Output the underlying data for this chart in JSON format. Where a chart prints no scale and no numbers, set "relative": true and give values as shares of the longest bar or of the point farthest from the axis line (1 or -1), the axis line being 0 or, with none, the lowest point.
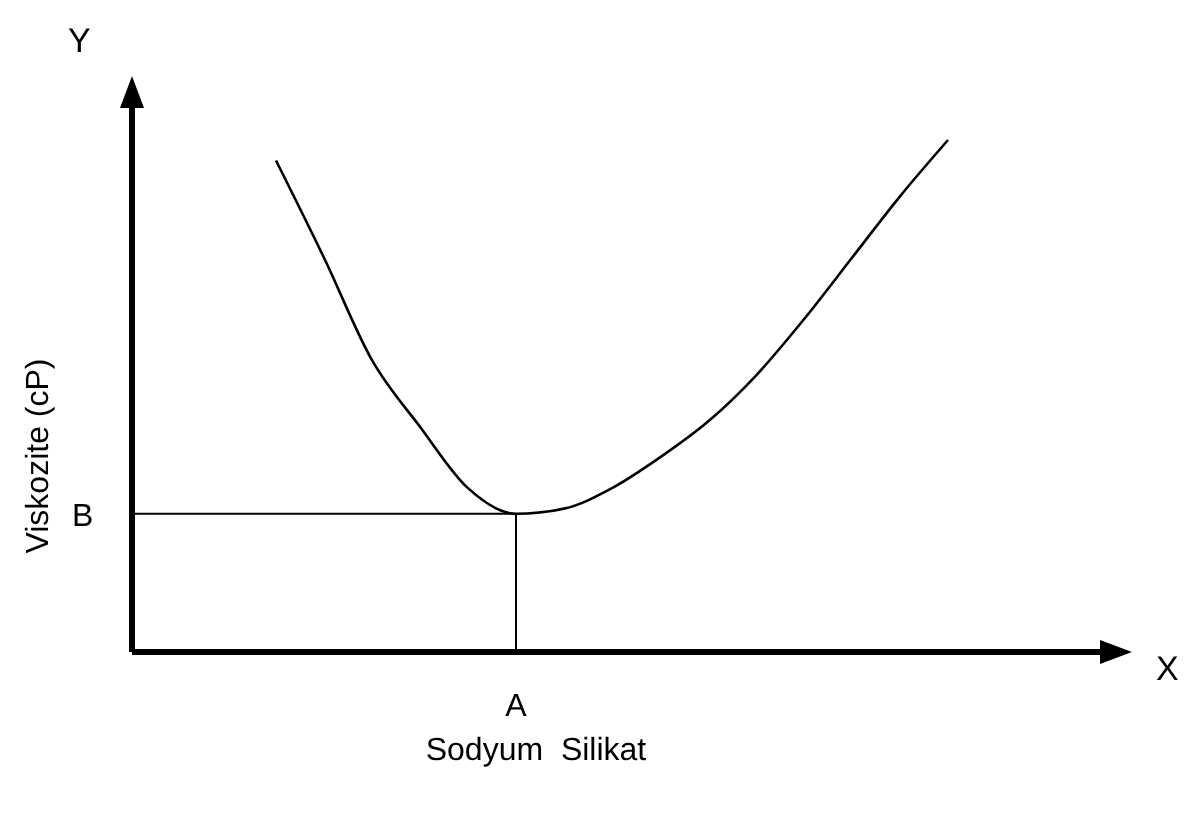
{
  "chart_data": {
    "type": "line",
    "relative": true,
    "xlabel": "Sodyum  Silikat",
    "ylabel": "Viskozite (cP)",
    "annotations": [
      "Y",
      "X",
      "A"
    ],
    "categories": [
      null,
      null,
      null,
      null,
      null,
      null,
      null,
      null,
      null,
      null,
      null,
      null,
      null,
      null,
      null,
      null,
      null,
      null,
      null,
      null,
      null
    ],
    "series": [
      {
        "color": "#000000",
        "values": [
          null,
          null,
          null,
          0.96,
          0.77,
          0.57,
          0.44,
          0.32,
          0.27,
          0.28,
          0.32,
          0.38,
          0.45,
          0.54,
          0.65,
          0.77,
          0.89,
          1,
          null,
          null,
          null
        ]
      }
    ],
    "ref_lines": [
      {
        "axis": "y",
        "value": 0.27,
        "label": "B"
      }
    ]
  }
}
